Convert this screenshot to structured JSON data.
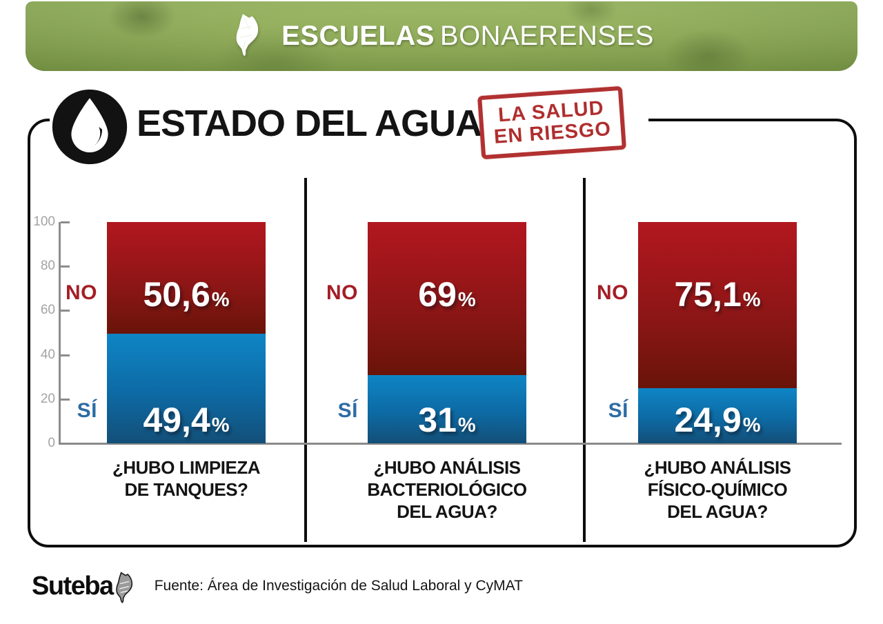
{
  "header": {
    "title_bold": "ESCUELAS",
    "title_light": "BONAERENSES"
  },
  "title": {
    "heading": "ESTADO DEL AGUA",
    "stamp_line1": "LA SALUD",
    "stamp_line2": "EN RIESGO"
  },
  "colors": {
    "banner_green": "#7d9c48",
    "no_red_top": "#b2171f",
    "no_red_bottom": "#691409",
    "si_blue_top": "#0e85c5",
    "si_blue_bottom": "#134f78",
    "no_label_red": "#a41e27",
    "si_label_blue": "#2d6ca4",
    "stamp_red": "#b13131",
    "axis_gray": "#8c8c8c"
  },
  "chart_data": {
    "type": "bar",
    "subtype": "stacked-percentage-columns",
    "unit": "%",
    "ylim": [
      0,
      100
    ],
    "yticks": [
      0,
      20,
      40,
      60,
      80,
      100
    ],
    "grid": false,
    "legend_position": "left-of-bars",
    "series_labels": {
      "no": "NO",
      "si": "SÍ"
    },
    "charts": [
      {
        "question": "¿HUBO LIMPIEZA DE TANQUES?",
        "question_lines": [
          "¿HUBO LIMPIEZA",
          "DE TANQUES?"
        ],
        "no_value": 50.6,
        "no_display": "50,6",
        "si_value": 49.4,
        "si_display": "49,4"
      },
      {
        "question": "¿HUBO ANÁLISIS BACTERIOLÓGICO DEL AGUA?",
        "question_lines": [
          "¿HUBO ANÁLISIS",
          "BACTERIOLÓGICO",
          "DEL AGUA?"
        ],
        "no_value": 69,
        "no_display": "69",
        "si_value": 31,
        "si_display": "31"
      },
      {
        "question": "¿HUBO ANÁLISIS FÍSICO-QUÍMICO DEL AGUA?",
        "question_lines": [
          "¿HUBO ANÁLISIS",
          "FÍSICO-QUÍMICO",
          "DEL AGUA?"
        ],
        "no_value": 75.1,
        "no_display": "75,1",
        "si_value": 24.9,
        "si_display": "24,9"
      }
    ]
  },
  "footer": {
    "logo": "Suteba",
    "source": "Fuente: Área de Investigación de Salud Laboral y CyMAT"
  }
}
